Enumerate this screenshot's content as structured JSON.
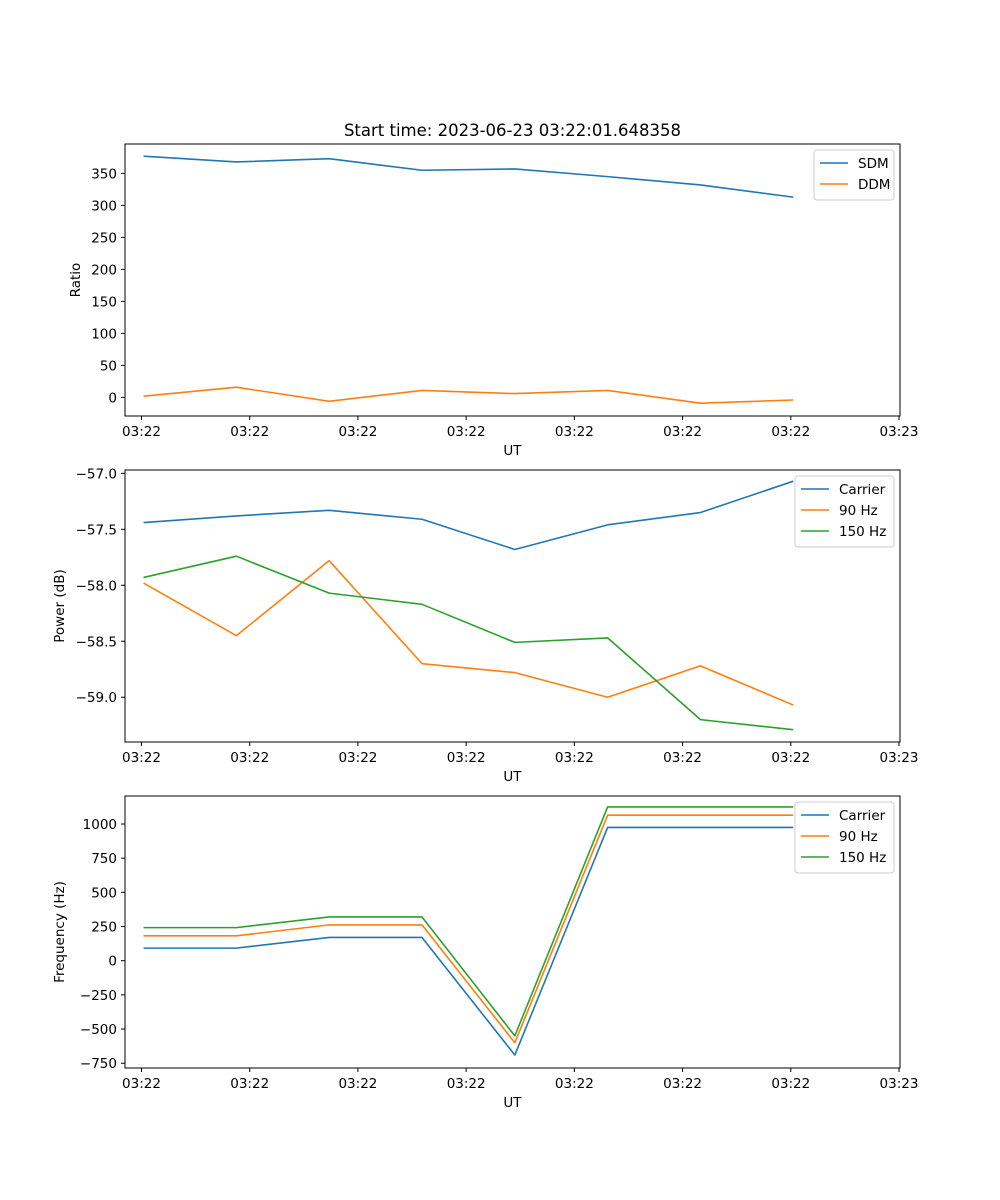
{
  "title": "Start time: 2023-06-23 03:22:01.648358",
  "chart_data": [
    {
      "type": "line",
      "xlabel": "UT",
      "ylabel": "Ratio",
      "x_tick_labels": [
        "03:22",
        "03:22",
        "03:22",
        "03:22",
        "03:22",
        "03:22",
        "03:22"
      ],
      "x_tick_last": "03:23",
      "x": [
        1,
        2,
        3,
        4,
        5,
        6,
        7,
        8
      ],
      "xlim": [
        0.8,
        9.15
      ],
      "yticks": [
        "0",
        "50",
        "100",
        "150",
        "200",
        "250",
        "300",
        "350"
      ],
      "ytick_values": [
        0,
        50,
        100,
        150,
        200,
        250,
        300,
        350
      ],
      "ylim": [
        -29,
        396
      ],
      "legend_loc": "top-right",
      "grid": false,
      "series": [
        {
          "name": "SDM",
          "color": "#1f77b4",
          "values": [
            377,
            368,
            373,
            355,
            357,
            345,
            332,
            313
          ]
        },
        {
          "name": "DDM",
          "color": "#ff7f0e",
          "values": [
            2,
            16,
            -6,
            11,
            6,
            11,
            -9,
            -4
          ]
        }
      ]
    },
    {
      "type": "line",
      "xlabel": "UT",
      "ylabel": "Power (dB)",
      "x_tick_labels": [
        "03:22",
        "03:22",
        "03:22",
        "03:22",
        "03:22",
        "03:22",
        "03:22"
      ],
      "x_tick_last": "03:23",
      "x": [
        1,
        2,
        3,
        4,
        5,
        6,
        7,
        8
      ],
      "xlim": [
        0.8,
        9.15
      ],
      "yticks": [
        "−57.0",
        "−57.5",
        "−58.0",
        "−58.5",
        "−59.0"
      ],
      "ytick_values": [
        -57.0,
        -57.5,
        -58.0,
        -58.5,
        -59.0
      ],
      "ylim": [
        -59.4,
        -56.97
      ],
      "legend_loc": "top-right",
      "grid": false,
      "series": [
        {
          "name": "Carrier",
          "color": "#1f77b4",
          "values": [
            -57.44,
            -57.38,
            -57.33,
            -57.41,
            -57.68,
            -57.46,
            -57.35,
            -57.07
          ]
        },
        {
          "name": "90 Hz",
          "color": "#ff7f0e",
          "values": [
            -57.98,
            -58.45,
            -57.78,
            -58.7,
            -58.78,
            -59.0,
            -58.72,
            -59.07
          ]
        },
        {
          "name": "150 Hz",
          "color": "#2ca02c",
          "values": [
            -57.93,
            -57.74,
            -58.07,
            -58.17,
            -58.51,
            -58.47,
            -59.2,
            -59.29
          ]
        }
      ]
    },
    {
      "type": "line",
      "xlabel": "UT",
      "ylabel": "Frequency (Hz)",
      "x_tick_labels": [
        "03:22",
        "03:22",
        "03:22",
        "03:22",
        "03:22",
        "03:22",
        "03:22"
      ],
      "x_tick_last": "03:23",
      "x": [
        1,
        2,
        3,
        4,
        5,
        6,
        7,
        8
      ],
      "xlim": [
        0.8,
        9.15
      ],
      "yticks": [
        "−750",
        "−500",
        "−250",
        "0",
        "250",
        "500",
        "750",
        "1000"
      ],
      "ytick_values": [
        -750,
        -500,
        -250,
        0,
        250,
        500,
        750,
        1000
      ],
      "ylim": [
        -785,
        1205
      ],
      "legend_loc": "top-right",
      "grid": false,
      "series": [
        {
          "name": "Carrier",
          "color": "#1f77b4",
          "values": [
            92,
            92,
            170,
            170,
            -690,
            975,
            975,
            975
          ]
        },
        {
          "name": "90 Hz",
          "color": "#ff7f0e",
          "values": [
            182,
            182,
            262,
            262,
            -600,
            1065,
            1065,
            1065
          ]
        },
        {
          "name": "150 Hz",
          "color": "#2ca02c",
          "values": [
            242,
            242,
            320,
            320,
            -550,
            1125,
            1125,
            1125
          ]
        }
      ]
    }
  ]
}
